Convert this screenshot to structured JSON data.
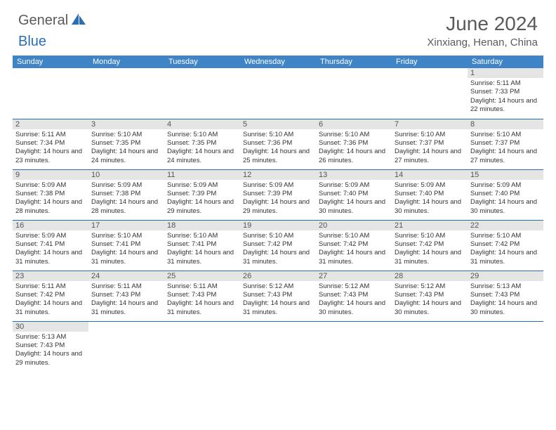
{
  "brand": {
    "part1": "General",
    "part2": "Blue"
  },
  "title": "June 2024",
  "location": "Xinxiang, Henan, China",
  "colors": {
    "header_bg": "#3e84c6",
    "border": "#2a6fb5",
    "daynum_bg": "#e5e5e5",
    "text": "#333333",
    "muted": "#5a5a5a"
  },
  "day_headers": [
    "Sunday",
    "Monday",
    "Tuesday",
    "Wednesday",
    "Thursday",
    "Friday",
    "Saturday"
  ],
  "weeks": [
    [
      null,
      null,
      null,
      null,
      null,
      null,
      {
        "n": "1",
        "sr": "5:11 AM",
        "ss": "7:33 PM",
        "dl": "14 hours and 22 minutes."
      }
    ],
    [
      {
        "n": "2",
        "sr": "5:11 AM",
        "ss": "7:34 PM",
        "dl": "14 hours and 23 minutes."
      },
      {
        "n": "3",
        "sr": "5:10 AM",
        "ss": "7:35 PM",
        "dl": "14 hours and 24 minutes."
      },
      {
        "n": "4",
        "sr": "5:10 AM",
        "ss": "7:35 PM",
        "dl": "14 hours and 24 minutes."
      },
      {
        "n": "5",
        "sr": "5:10 AM",
        "ss": "7:36 PM",
        "dl": "14 hours and 25 minutes."
      },
      {
        "n": "6",
        "sr": "5:10 AM",
        "ss": "7:36 PM",
        "dl": "14 hours and 26 minutes."
      },
      {
        "n": "7",
        "sr": "5:10 AM",
        "ss": "7:37 PM",
        "dl": "14 hours and 27 minutes."
      },
      {
        "n": "8",
        "sr": "5:10 AM",
        "ss": "7:37 PM",
        "dl": "14 hours and 27 minutes."
      }
    ],
    [
      {
        "n": "9",
        "sr": "5:09 AM",
        "ss": "7:38 PM",
        "dl": "14 hours and 28 minutes."
      },
      {
        "n": "10",
        "sr": "5:09 AM",
        "ss": "7:38 PM",
        "dl": "14 hours and 28 minutes."
      },
      {
        "n": "11",
        "sr": "5:09 AM",
        "ss": "7:39 PM",
        "dl": "14 hours and 29 minutes."
      },
      {
        "n": "12",
        "sr": "5:09 AM",
        "ss": "7:39 PM",
        "dl": "14 hours and 29 minutes."
      },
      {
        "n": "13",
        "sr": "5:09 AM",
        "ss": "7:40 PM",
        "dl": "14 hours and 30 minutes."
      },
      {
        "n": "14",
        "sr": "5:09 AM",
        "ss": "7:40 PM",
        "dl": "14 hours and 30 minutes."
      },
      {
        "n": "15",
        "sr": "5:09 AM",
        "ss": "7:40 PM",
        "dl": "14 hours and 30 minutes."
      }
    ],
    [
      {
        "n": "16",
        "sr": "5:09 AM",
        "ss": "7:41 PM",
        "dl": "14 hours and 31 minutes."
      },
      {
        "n": "17",
        "sr": "5:10 AM",
        "ss": "7:41 PM",
        "dl": "14 hours and 31 minutes."
      },
      {
        "n": "18",
        "sr": "5:10 AM",
        "ss": "7:41 PM",
        "dl": "14 hours and 31 minutes."
      },
      {
        "n": "19",
        "sr": "5:10 AM",
        "ss": "7:42 PM",
        "dl": "14 hours and 31 minutes."
      },
      {
        "n": "20",
        "sr": "5:10 AM",
        "ss": "7:42 PM",
        "dl": "14 hours and 31 minutes."
      },
      {
        "n": "21",
        "sr": "5:10 AM",
        "ss": "7:42 PM",
        "dl": "14 hours and 31 minutes."
      },
      {
        "n": "22",
        "sr": "5:10 AM",
        "ss": "7:42 PM",
        "dl": "14 hours and 31 minutes."
      }
    ],
    [
      {
        "n": "23",
        "sr": "5:11 AM",
        "ss": "7:42 PM",
        "dl": "14 hours and 31 minutes."
      },
      {
        "n": "24",
        "sr": "5:11 AM",
        "ss": "7:43 PM",
        "dl": "14 hours and 31 minutes."
      },
      {
        "n": "25",
        "sr": "5:11 AM",
        "ss": "7:43 PM",
        "dl": "14 hours and 31 minutes."
      },
      {
        "n": "26",
        "sr": "5:12 AM",
        "ss": "7:43 PM",
        "dl": "14 hours and 31 minutes."
      },
      {
        "n": "27",
        "sr": "5:12 AM",
        "ss": "7:43 PM",
        "dl": "14 hours and 30 minutes."
      },
      {
        "n": "28",
        "sr": "5:12 AM",
        "ss": "7:43 PM",
        "dl": "14 hours and 30 minutes."
      },
      {
        "n": "29",
        "sr": "5:13 AM",
        "ss": "7:43 PM",
        "dl": "14 hours and 30 minutes."
      }
    ],
    [
      {
        "n": "30",
        "sr": "5:13 AM",
        "ss": "7:43 PM",
        "dl": "14 hours and 29 minutes."
      },
      null,
      null,
      null,
      null,
      null,
      null
    ]
  ],
  "labels": {
    "sunrise": "Sunrise:",
    "sunset": "Sunset:",
    "daylight": "Daylight:"
  }
}
